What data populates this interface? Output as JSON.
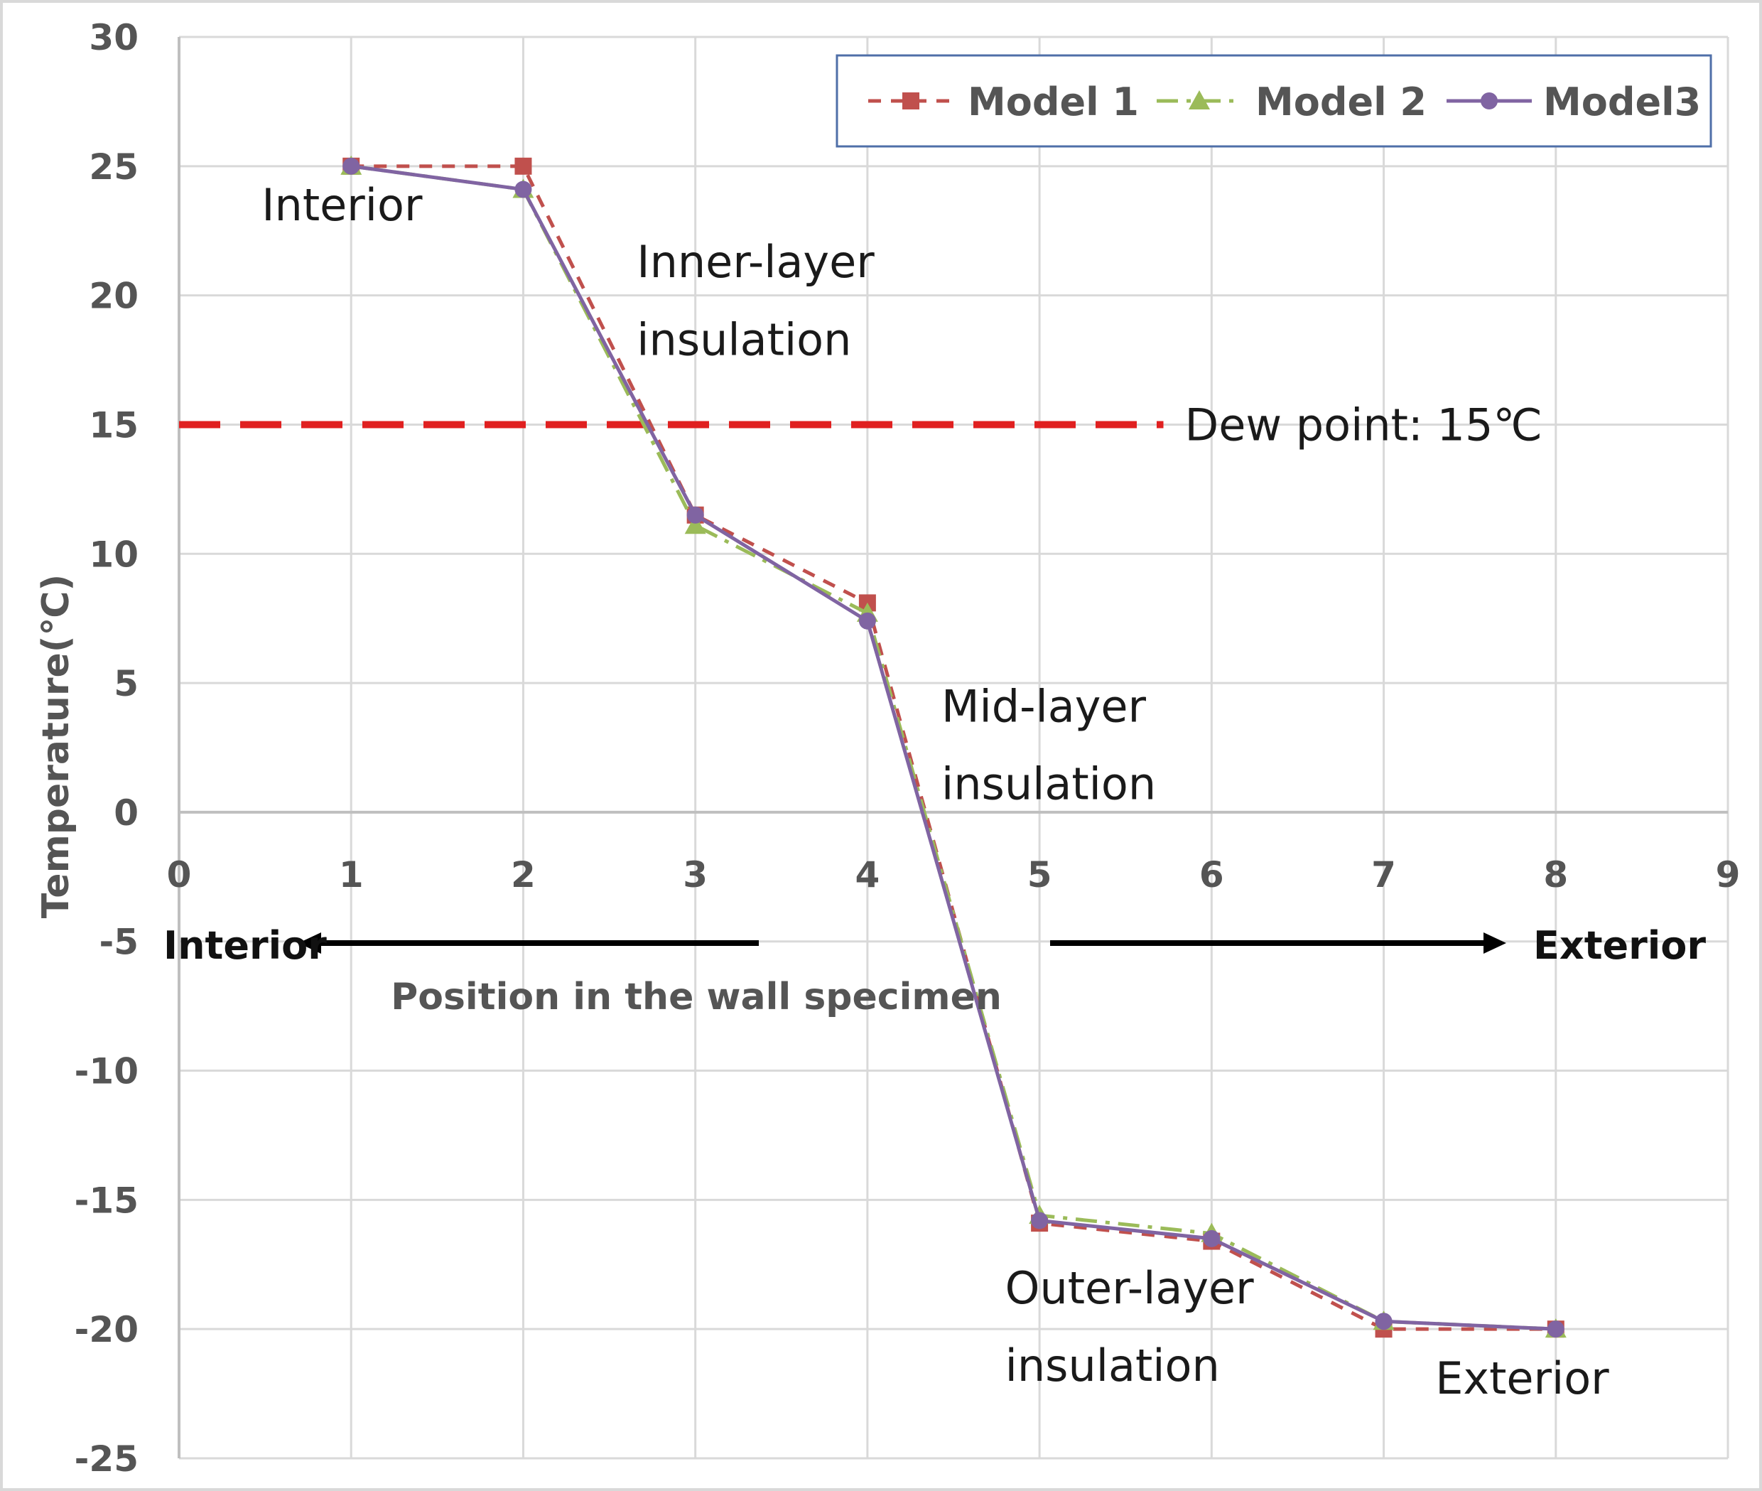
{
  "chart_data": {
    "type": "line",
    "xlabel": "Position in the wall specimen",
    "ylabel": "Temperature(℃)",
    "xlim": [
      0,
      9
    ],
    "ylim": [
      -25,
      30
    ],
    "xticks": [
      0,
      1,
      2,
      3,
      4,
      5,
      6,
      7,
      8,
      9
    ],
    "yticks": [
      30,
      25,
      20,
      15,
      10,
      5,
      0,
      -5,
      -10,
      -15,
      -20,
      -25
    ],
    "grid": true,
    "legend_position": "top-right",
    "series": [
      {
        "name": "Model 1",
        "color": "#C0504D",
        "x": [
          1,
          2,
          3,
          4,
          5,
          6,
          7,
          8
        ],
        "y": [
          25,
          25,
          11.5,
          8.1,
          -15.9,
          -16.6,
          -20,
          -20
        ]
      },
      {
        "name": "Model 2",
        "color": "#9BBB59",
        "x": [
          1,
          2,
          3,
          4,
          5,
          6,
          7,
          8
        ],
        "y": [
          25,
          24.1,
          11.1,
          7.7,
          -15.6,
          -16.3,
          -19.7,
          -20
        ]
      },
      {
        "name": "Model3",
        "color": "#8064A2",
        "x": [
          1,
          2,
          3,
          4,
          5,
          6,
          7,
          8
        ],
        "y": [
          25,
          24.1,
          11.5,
          7.4,
          -15.8,
          -16.5,
          -19.7,
          -20
        ]
      }
    ],
    "dew_point": {
      "value": 15,
      "x_end": 5.72,
      "label": "Dew point: 15℃",
      "color": "#E02020"
    },
    "annotations": [
      {
        "text": "Interior",
        "x": 0.48,
        "y": 22.9
      },
      {
        "text": "Inner-layer",
        "x": 2.66,
        "y": 20.7
      },
      {
        "text": "insulation",
        "x": 2.66,
        "y": 17.7
      },
      {
        "text": "Mid-layer",
        "x": 4.43,
        "y": 3.5
      },
      {
        "text": "insulation",
        "x": 4.43,
        "y": 0.5
      },
      {
        "text": "Outer-layer",
        "x": 4.8,
        "y": -19.0
      },
      {
        "text": "insulation",
        "x": 4.8,
        "y": -22.0
      },
      {
        "text": "Exterior",
        "x": 7.3,
        "y": -22.5
      }
    ],
    "direction_labels": {
      "interior": "Interior",
      "exterior": "Exterior"
    }
  }
}
